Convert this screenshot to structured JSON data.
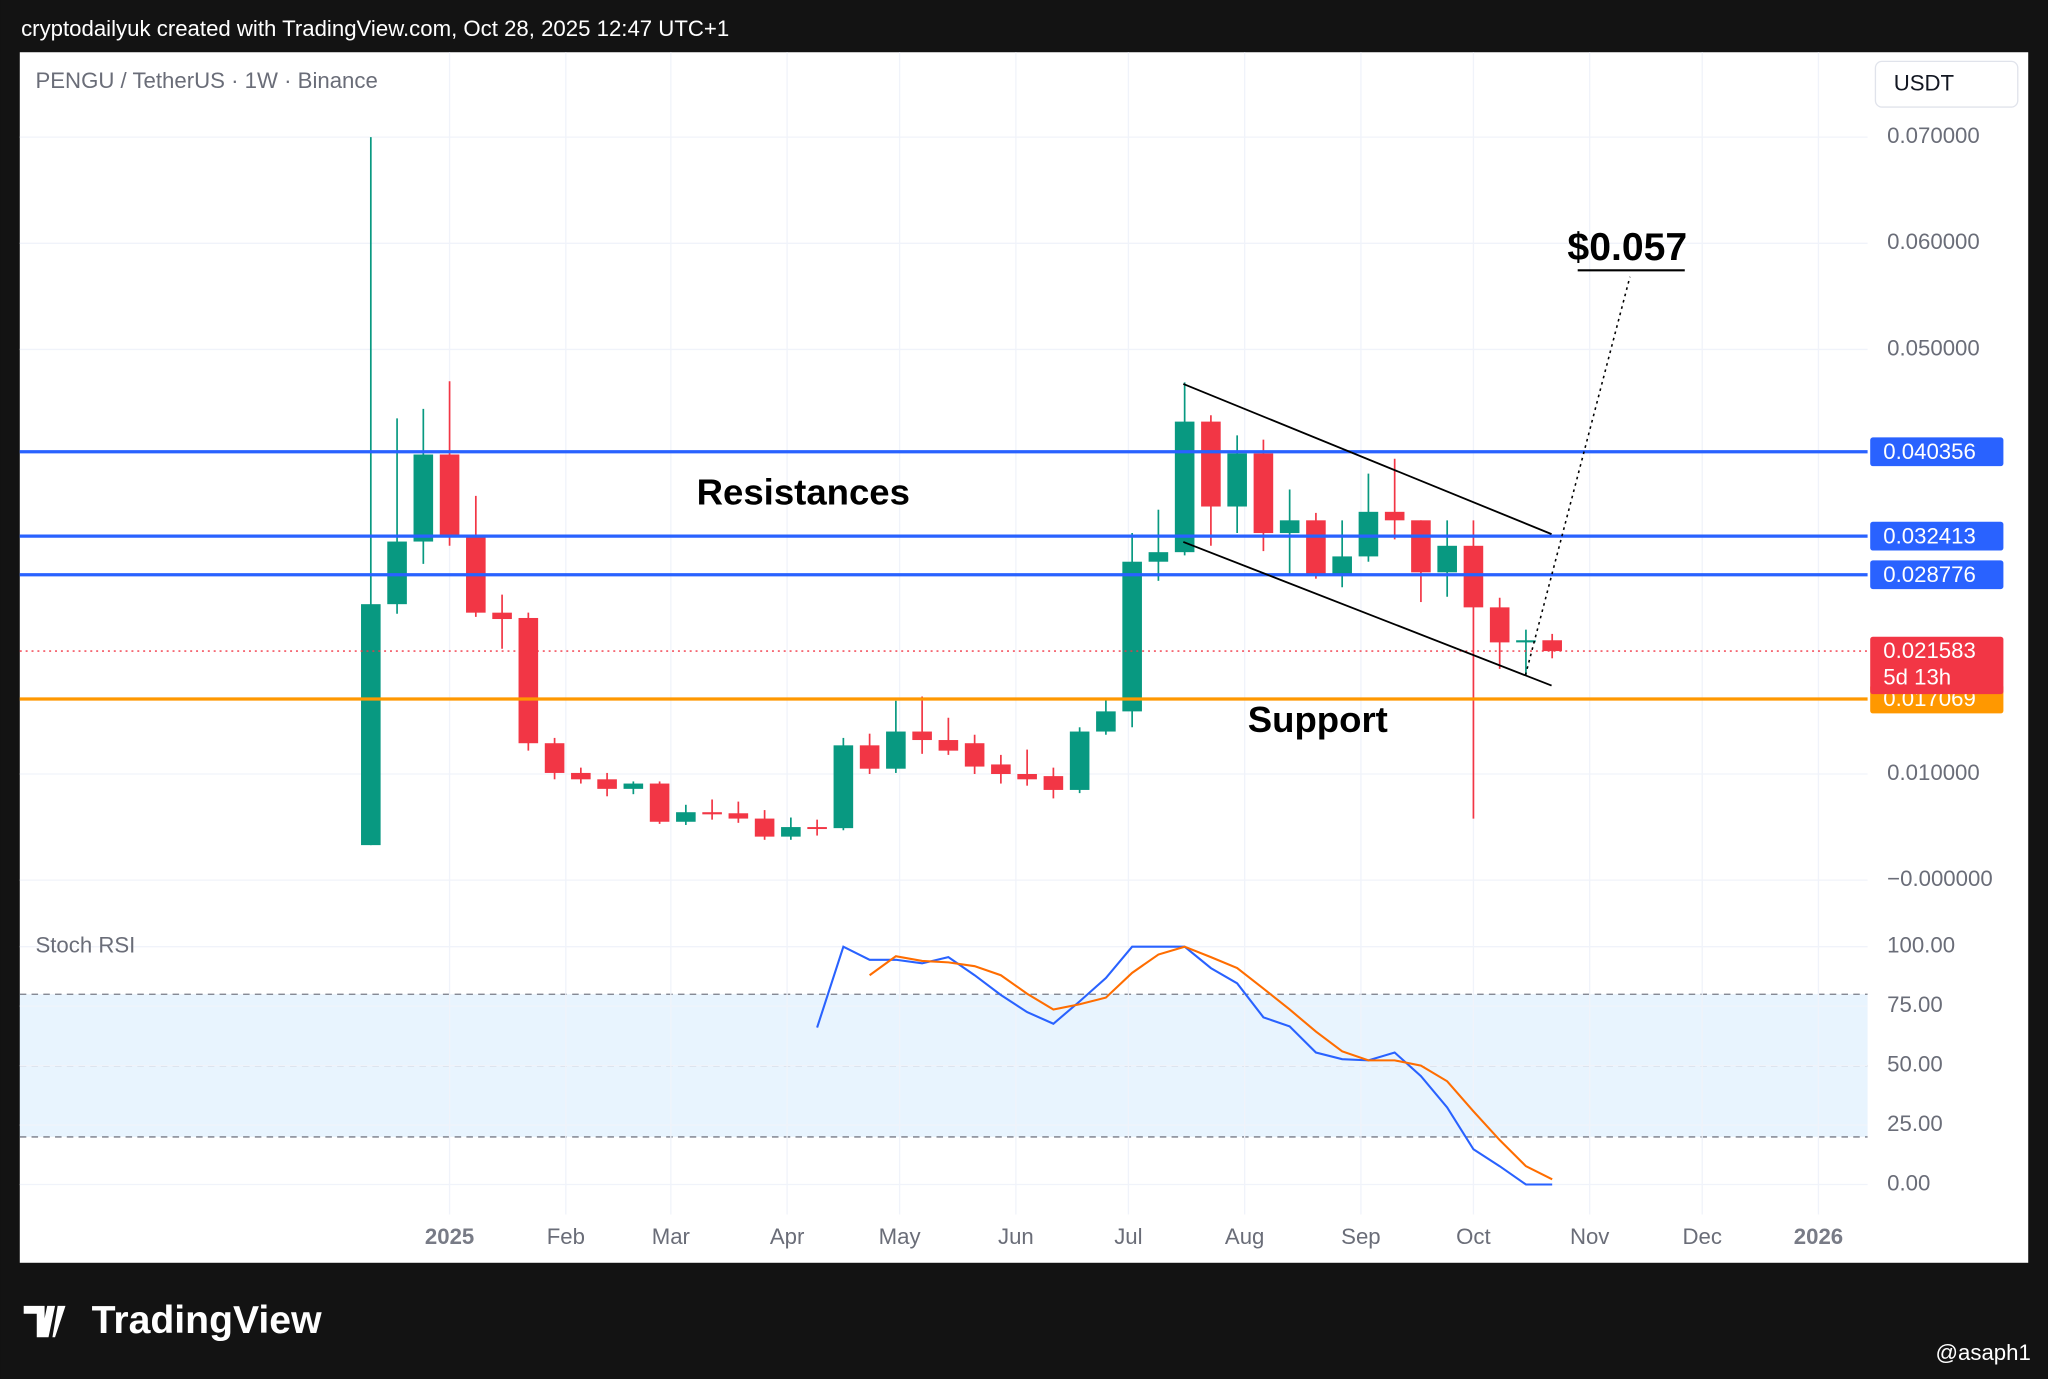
{
  "header": "cryptodailyuk created with TradingView.com, Oct 28, 2025 12:47 UTC+1",
  "footer_brand": "TradingView",
  "footer_user": "@asaph1",
  "chart_data": [
    {
      "type": "candlestick",
      "title": "PENGU / TetherUS · 1W · Binance",
      "currency": "USDT",
      "up_color": "#089981",
      "down_color": "#f23645",
      "x": [
        -21,
        -14,
        -7,
        0,
        7,
        14,
        21,
        28,
        35,
        42,
        49,
        56,
        63,
        70,
        77,
        84,
        91,
        98,
        105,
        112,
        119,
        126,
        133,
        140,
        147,
        154,
        161,
        168,
        175,
        182,
        189,
        196,
        203,
        210,
        217,
        224,
        231,
        238,
        245,
        252,
        259,
        266,
        273,
        280,
        287,
        294
      ],
      "open": [
        0.0033,
        0.026,
        0.0319,
        0.0401,
        0.0325,
        0.0252,
        0.0247,
        0.0129,
        0.0101,
        0.0095,
        0.0086,
        0.0091,
        0.0055,
        0.0064,
        0.0063,
        0.0058,
        0.0041,
        0.005,
        0.0049,
        0.0127,
        0.0105,
        0.014,
        0.0132,
        0.0129,
        0.0109,
        0.01,
        0.0098,
        0.0085,
        0.014,
        0.0159,
        0.03,
        0.0309,
        0.0432,
        0.0352,
        0.0402,
        0.0327,
        0.0339,
        0.0288,
        0.0305,
        0.0347,
        0.0339,
        0.029,
        0.0315,
        0.0257,
        0.0224,
        0.0226
      ],
      "high": [
        0.07,
        0.0435,
        0.0444,
        0.047,
        0.0362,
        0.0269,
        0.0252,
        0.0134,
        0.0106,
        0.0101,
        0.0093,
        0.0093,
        0.0071,
        0.0076,
        0.0074,
        0.0066,
        0.0059,
        0.0057,
        0.0134,
        0.0138,
        0.0169,
        0.0173,
        0.0153,
        0.0137,
        0.0118,
        0.0123,
        0.0106,
        0.0144,
        0.0171,
        0.0327,
        0.0349,
        0.0469,
        0.0438,
        0.0419,
        0.0415,
        0.0368,
        0.0346,
        0.0339,
        0.0383,
        0.0397,
        0.0339,
        0.0339,
        0.0339,
        0.0266,
        0.0236,
        0.0232
      ],
      "low": [
        0.0033,
        0.0251,
        0.0298,
        0.0315,
        0.0248,
        0.0218,
        0.0122,
        0.0095,
        0.0091,
        0.0079,
        0.0081,
        0.0053,
        0.0052,
        0.0057,
        0.0054,
        0.0038,
        0.0038,
        0.0042,
        0.0047,
        0.01,
        0.0101,
        0.0119,
        0.0118,
        0.01,
        0.0091,
        0.0089,
        0.0077,
        0.0082,
        0.0137,
        0.0144,
        0.0282,
        0.0306,
        0.0315,
        0.0327,
        0.031,
        0.0288,
        0.0284,
        0.0276,
        0.03,
        0.0321,
        0.0262,
        0.0267,
        0.0058,
        0.0199,
        0.0193,
        0.0209
      ],
      "close": [
        0.026,
        0.0319,
        0.0401,
        0.0325,
        0.0252,
        0.0246,
        0.0129,
        0.0101,
        0.0095,
        0.0086,
        0.0091,
        0.0055,
        0.0064,
        0.0062,
        0.0058,
        0.0041,
        0.005,
        0.0049,
        0.0127,
        0.0105,
        0.014,
        0.0132,
        0.0122,
        0.0107,
        0.01,
        0.0095,
        0.0085,
        0.014,
        0.0159,
        0.03,
        0.0309,
        0.0432,
        0.0352,
        0.0402,
        0.0327,
        0.0339,
        0.0288,
        0.0305,
        0.0347,
        0.0339,
        0.029,
        0.0315,
        0.0257,
        0.0224,
        0.0226,
        0.021583
      ],
      "countdown": "5d 13h",
      "xlim": [
        -114.6,
        378.1
      ],
      "ylim": [
        -0.0032,
        0.078
      ],
      "yticks": [
        {
          "value": 0.07,
          "label": "0.070000"
        },
        {
          "value": 0.06,
          "label": "0.060000"
        },
        {
          "value": 0.05,
          "label": "0.050000"
        },
        {
          "value": 0.01,
          "label": "0.010000"
        },
        {
          "value": 0,
          "label": "−0.000000"
        }
      ],
      "grid": true,
      "levels": [
        {
          "value": 0.040356,
          "color": "#2962ff"
        },
        {
          "value": 0.032413,
          "color": "#2962ff"
        },
        {
          "value": 0.028776,
          "color": "#2962ff"
        },
        {
          "value": 0.017069,
          "color": "#ff9800"
        }
      ],
      "annotations": {
        "resistance": "Resistances",
        "support": "Support",
        "target": "$0.057"
      }
    },
    {
      "type": "line",
      "title": "Stoch RSI",
      "x": [
        -21,
        -14,
        -7,
        0,
        7,
        14,
        21,
        28,
        35,
        42,
        49,
        56,
        63,
        70,
        77,
        84,
        91,
        98,
        105,
        112,
        119,
        126,
        133,
        140,
        147,
        154,
        161,
        168,
        175,
        182,
        189,
        196,
        203,
        210,
        217,
        224,
        231,
        238,
        245,
        252,
        259,
        266,
        273,
        280,
        287,
        294
      ],
      "series": [
        {
          "color": "#2962ff",
          "values": [
            null,
            null,
            null,
            null,
            null,
            null,
            null,
            null,
            null,
            null,
            null,
            null,
            null,
            null,
            null,
            null,
            null,
            66,
            100,
            94.5,
            94.5,
            93,
            95.6,
            88,
            79.7,
            72.5,
            67.6,
            77,
            86.8,
            100,
            100,
            100,
            91,
            84.6,
            70.3,
            66.5,
            55.5,
            52.7,
            52.2,
            55.5,
            45.6,
            32.4,
            14.8,
            7.7,
            0,
            0
          ]
        },
        {
          "color": "#ff6d00",
          "values": [
            null,
            null,
            null,
            null,
            null,
            null,
            null,
            null,
            null,
            null,
            null,
            null,
            null,
            null,
            null,
            null,
            null,
            null,
            null,
            88,
            96,
            94,
            93.4,
            91.8,
            88,
            80.2,
            73.6,
            75.8,
            78.6,
            89,
            96.7,
            100,
            95.6,
            91,
            82.4,
            73.6,
            64.3,
            56,
            52.2,
            52.2,
            50,
            43.4,
            30.8,
            18.7,
            7.7,
            2.2
          ]
        }
      ],
      "hlines": [
        80,
        50,
        20
      ],
      "xlim": [
        -114.6,
        378.1
      ],
      "ylim": [
        -12.6,
        113.7
      ],
      "yticks": [
        {
          "value": 100,
          "label": "100.00"
        },
        {
          "value": 75,
          "label": "75.00"
        },
        {
          "value": 50,
          "label": "50.00"
        },
        {
          "value": 25,
          "label": "25.00"
        },
        {
          "value": 0,
          "label": "0.00"
        }
      ],
      "xticks": [
        {
          "value": 0,
          "label": "2025"
        },
        {
          "value": 31,
          "label": "Feb"
        },
        {
          "value": 59,
          "label": "Mar"
        },
        {
          "value": 90,
          "label": "Apr"
        },
        {
          "value": 120,
          "label": "May"
        },
        {
          "value": 151,
          "label": "Jun"
        },
        {
          "value": 181,
          "label": "Jul"
        },
        {
          "value": 212,
          "label": "Aug"
        },
        {
          "value": 243,
          "label": "Sep"
        },
        {
          "value": 273,
          "label": "Oct"
        },
        {
          "value": 304,
          "label": "Nov"
        },
        {
          "value": 334,
          "label": "Dec"
        },
        {
          "value": 365,
          "label": "2026"
        }
      ],
      "grid": true
    }
  ]
}
